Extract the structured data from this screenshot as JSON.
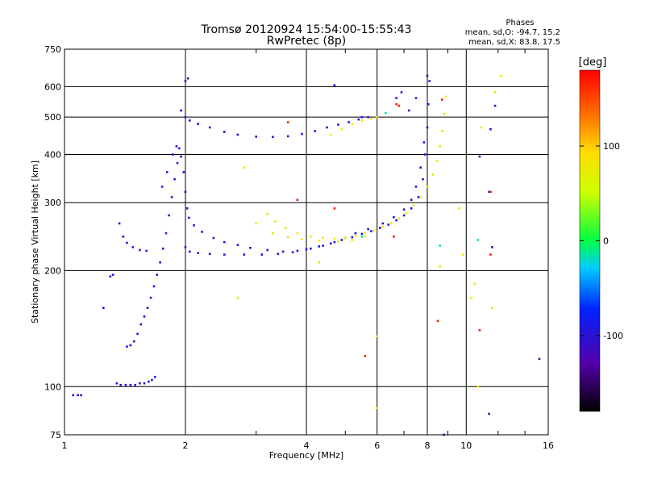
{
  "header": {
    "title": "Tromsø 20120924 15:54:00-15:55:43",
    "subtitle": "RwPretec (8p)"
  },
  "stats": {
    "heading": "Phases",
    "line_o": "mean, sd,O: -94.7, 15.2",
    "line_x": "mean, sd,X:  83.8, 17.5"
  },
  "colorbar": {
    "label": "[deg]",
    "ticks": [
      {
        "value": 100,
        "label": "100"
      },
      {
        "value": 0,
        "label": "0"
      },
      {
        "value": -100,
        "label": "-100"
      }
    ],
    "range": [
      -180,
      180
    ]
  },
  "chart_data": {
    "type": "scatter",
    "title": "Tromsø 20120924 15:54:00-15:55:43",
    "subtitle": "RwPretec (8p)",
    "xlabel": "Frequency [MHz]",
    "ylabel": "Stationary phase Virtual Height [km]",
    "x_scale": "log",
    "y_scale": "log",
    "xlim": [
      1,
      16
    ],
    "ylim": [
      75,
      750
    ],
    "x_ticks": [
      {
        "value": 1,
        "label": "1"
      },
      {
        "value": 2,
        "label": "2"
      },
      {
        "value": 4,
        "label": "4"
      },
      {
        "value": 6,
        "label": "6"
      },
      {
        "value": 8,
        "label": "8"
      },
      {
        "value": 10,
        "label": "10"
      },
      {
        "value": 16,
        "label": "16"
      }
    ],
    "y_ticks": [
      {
        "value": 75,
        "label": "75"
      },
      {
        "value": 100,
        "label": "100"
      },
      {
        "value": 200,
        "label": "200"
      },
      {
        "value": 300,
        "label": "300"
      },
      {
        "value": 400,
        "label": "400"
      },
      {
        "value": 500,
        "label": "500"
      },
      {
        "value": 600,
        "label": "600"
      },
      {
        "value": 750,
        "label": "750"
      }
    ],
    "grid": true,
    "color_scale": {
      "variable": "phase",
      "unit": "deg",
      "min": -180,
      "max": 180
    },
    "series": [
      {
        "phase": -94.7,
        "points": [
          [
            1.05,
            95
          ],
          [
            1.08,
            95
          ],
          [
            1.1,
            95
          ],
          [
            1.35,
            102
          ],
          [
            1.38,
            101
          ],
          [
            1.42,
            101
          ],
          [
            1.46,
            101
          ],
          [
            1.5,
            101
          ],
          [
            1.54,
            102
          ],
          [
            1.58,
            102
          ],
          [
            1.62,
            103
          ],
          [
            1.65,
            104
          ],
          [
            1.68,
            106
          ],
          [
            1.43,
            127
          ],
          [
            1.46,
            128
          ],
          [
            1.49,
            131
          ],
          [
            1.52,
            137
          ],
          [
            1.55,
            145
          ],
          [
            1.58,
            152
          ],
          [
            1.61,
            160
          ],
          [
            1.64,
            170
          ],
          [
            1.67,
            182
          ],
          [
            1.7,
            195
          ],
          [
            1.73,
            210
          ],
          [
            1.76,
            228
          ],
          [
            1.79,
            250
          ],
          [
            1.82,
            278
          ],
          [
            1.85,
            310
          ],
          [
            1.88,
            345
          ],
          [
            1.91,
            380
          ],
          [
            1.93,
            415
          ],
          [
            1.3,
            193
          ],
          [
            1.32,
            195
          ],
          [
            1.25,
            160
          ],
          [
            1.37,
            265
          ],
          [
            1.4,
            245
          ],
          [
            1.43,
            236
          ],
          [
            1.48,
            230
          ],
          [
            1.54,
            226
          ],
          [
            1.6,
            225
          ],
          [
            1.75,
            330
          ],
          [
            1.8,
            360
          ],
          [
            1.86,
            400
          ],
          [
            1.9,
            420
          ],
          [
            1.95,
            395
          ],
          [
            1.98,
            360
          ],
          [
            2.0,
            320
          ],
          [
            2.02,
            290
          ],
          [
            2.04,
            274
          ],
          [
            2.1,
            262
          ],
          [
            2.2,
            252
          ],
          [
            2.35,
            243
          ],
          [
            2.5,
            237
          ],
          [
            2.7,
            233
          ],
          [
            2.9,
            229
          ],
          [
            3.2,
            226
          ],
          [
            3.5,
            224
          ],
          [
            3.8,
            225
          ],
          [
            4.1,
            228
          ],
          [
            4.4,
            232
          ],
          [
            4.7,
            237
          ],
          [
            5.0,
            243
          ],
          [
            2.0,
            230
          ],
          [
            2.05,
            224
          ],
          [
            2.15,
            222
          ],
          [
            2.3,
            221
          ],
          [
            2.5,
            220
          ],
          [
            2.8,
            220
          ],
          [
            3.1,
            220
          ],
          [
            3.4,
            221
          ],
          [
            3.7,
            223
          ],
          [
            4.0,
            227
          ],
          [
            4.3,
            231
          ],
          [
            4.6,
            235
          ],
          [
            4.9,
            240
          ],
          [
            5.2,
            244
          ],
          [
            5.5,
            249
          ],
          [
            5.8,
            253
          ],
          [
            6.1,
            258
          ],
          [
            6.4,
            263
          ],
          [
            6.7,
            270
          ],
          [
            7.0,
            278
          ],
          [
            7.3,
            290
          ],
          [
            7.6,
            310
          ],
          [
            7.8,
            345
          ],
          [
            7.9,
            400
          ],
          [
            8.0,
            470
          ],
          [
            8.05,
            540
          ],
          [
            8.1,
            620
          ],
          [
            5.3,
            250
          ],
          [
            5.7,
            256
          ],
          [
            6.2,
            265
          ],
          [
            6.6,
            275
          ],
          [
            7.0,
            288
          ],
          [
            7.3,
            305
          ],
          [
            7.5,
            330
          ],
          [
            7.7,
            370
          ],
          [
            7.85,
            430
          ],
          [
            1.95,
            520
          ],
          [
            2.0,
            500
          ],
          [
            2.05,
            490
          ],
          [
            2.15,
            480
          ],
          [
            2.3,
            470
          ],
          [
            2.5,
            458
          ],
          [
            2.7,
            450
          ],
          [
            3.0,
            445
          ],
          [
            3.3,
            444
          ],
          [
            3.6,
            446
          ],
          [
            3.9,
            452
          ],
          [
            4.2,
            460
          ],
          [
            4.5,
            470
          ],
          [
            4.8,
            478
          ],
          [
            5.1,
            485
          ],
          [
            5.4,
            493
          ],
          [
            5.7,
            500
          ],
          [
            2.0,
            620
          ],
          [
            2.03,
            630
          ],
          [
            4.7,
            605
          ],
          [
            5.5,
            500
          ],
          [
            6.7,
            560
          ],
          [
            6.9,
            580
          ],
          [
            7.2,
            520
          ],
          [
            7.5,
            560
          ],
          [
            8.0,
            640
          ],
          [
            8.8,
            75
          ],
          [
            10.8,
            395
          ],
          [
            11.4,
            320
          ],
          [
            11.6,
            230
          ],
          [
            11.4,
            85
          ],
          [
            11.8,
            535
          ],
          [
            15.2,
            118
          ],
          [
            11.5,
            465
          ]
        ]
      },
      {
        "phase": 83.8,
        "points": [
          [
            3.2,
            280
          ],
          [
            3.35,
            268
          ],
          [
            3.55,
            258
          ],
          [
            3.8,
            250
          ],
          [
            4.1,
            245
          ],
          [
            4.4,
            243
          ],
          [
            4.7,
            242
          ],
          [
            5.0,
            243
          ],
          [
            5.3,
            246
          ],
          [
            5.6,
            250
          ],
          [
            5.9,
            254
          ],
          [
            6.2,
            260
          ],
          [
            6.5,
            266
          ],
          [
            6.8,
            273
          ],
          [
            7.1,
            282
          ],
          [
            7.4,
            295
          ],
          [
            7.7,
            310
          ],
          [
            8.0,
            330
          ],
          [
            8.25,
            355
          ],
          [
            8.45,
            385
          ],
          [
            8.6,
            420
          ],
          [
            8.72,
            460
          ],
          [
            8.82,
            510
          ],
          [
            8.9,
            565
          ],
          [
            3.0,
            265
          ],
          [
            3.3,
            250
          ],
          [
            3.6,
            244
          ],
          [
            3.9,
            241
          ],
          [
            4.3,
            239
          ],
          [
            4.8,
            238
          ],
          [
            5.2,
            240
          ],
          [
            5.6,
            245
          ],
          [
            4.6,
            450
          ],
          [
            4.9,
            465
          ],
          [
            5.2,
            480
          ],
          [
            5.5,
            490
          ],
          [
            5.8,
            495
          ],
          [
            6.0,
            500
          ],
          [
            2.8,
            370
          ],
          [
            2.7,
            170
          ],
          [
            8.6,
            205
          ],
          [
            9.8,
            220
          ],
          [
            9.6,
            290
          ],
          [
            10.5,
            185
          ],
          [
            10.7,
            100
          ],
          [
            10.9,
            470
          ],
          [
            11.6,
            160
          ],
          [
            11.8,
            580
          ],
          [
            12.2,
            640
          ],
          [
            6.0,
            135
          ],
          [
            6.0,
            88
          ],
          [
            4.3,
            210
          ],
          [
            10.3,
            170
          ]
        ]
      },
      {
        "phase": 170,
        "points": [
          [
            6.7,
            540
          ],
          [
            6.8,
            535
          ],
          [
            6.6,
            245
          ],
          [
            5.6,
            120
          ],
          [
            3.8,
            305
          ],
          [
            3.6,
            485
          ],
          [
            4.7,
            290
          ],
          [
            8.5,
            148
          ],
          [
            8.7,
            555
          ],
          [
            10.8,
            140
          ],
          [
            11.5,
            220
          ],
          [
            11.5,
            320
          ]
        ]
      },
      {
        "phase": -10,
        "points": [
          [
            10.7,
            240
          ],
          [
            5.5,
            245
          ],
          [
            6.3,
            512
          ],
          [
            8.6,
            232
          ]
        ]
      }
    ]
  }
}
